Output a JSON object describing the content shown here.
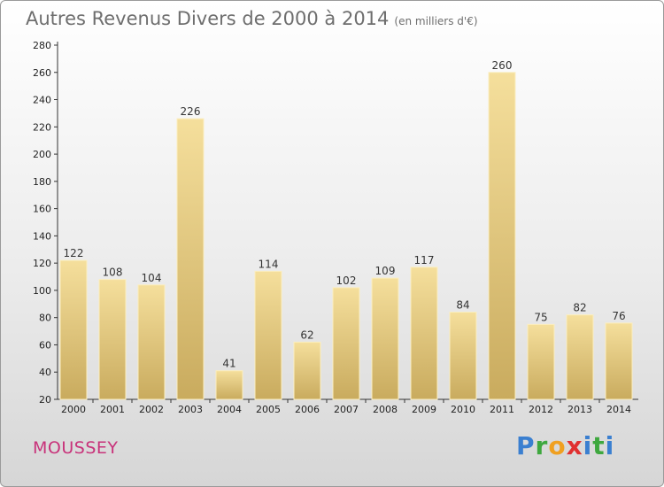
{
  "header": {
    "title": "Autres Revenus Divers de 2000 à 2014",
    "unit": "(en milliers d'€)"
  },
  "footer": {
    "town": "MOUSSEY",
    "logo": "Proxiti"
  },
  "colors": {
    "bar_top": "#f5df9c",
    "bar_bottom": "#c9ab5e",
    "town": "#c8327a"
  },
  "chart_data": {
    "type": "bar",
    "title": "Autres Revenus Divers de 2000 à 2014",
    "subtitle": "(en milliers d'€)",
    "categories": [
      "2000",
      "2001",
      "2002",
      "2003",
      "2004",
      "2005",
      "2006",
      "2007",
      "2008",
      "2009",
      "2010",
      "2011",
      "2012",
      "2013",
      "2014"
    ],
    "values": [
      122,
      108,
      104,
      226,
      41,
      114,
      62,
      102,
      109,
      117,
      84,
      260,
      75,
      82,
      76
    ],
    "ylim": [
      20,
      280
    ],
    "yticks": [
      20,
      40,
      60,
      80,
      100,
      120,
      140,
      160,
      180,
      200,
      220,
      240,
      260,
      280
    ],
    "grid": false,
    "legend": "none"
  }
}
